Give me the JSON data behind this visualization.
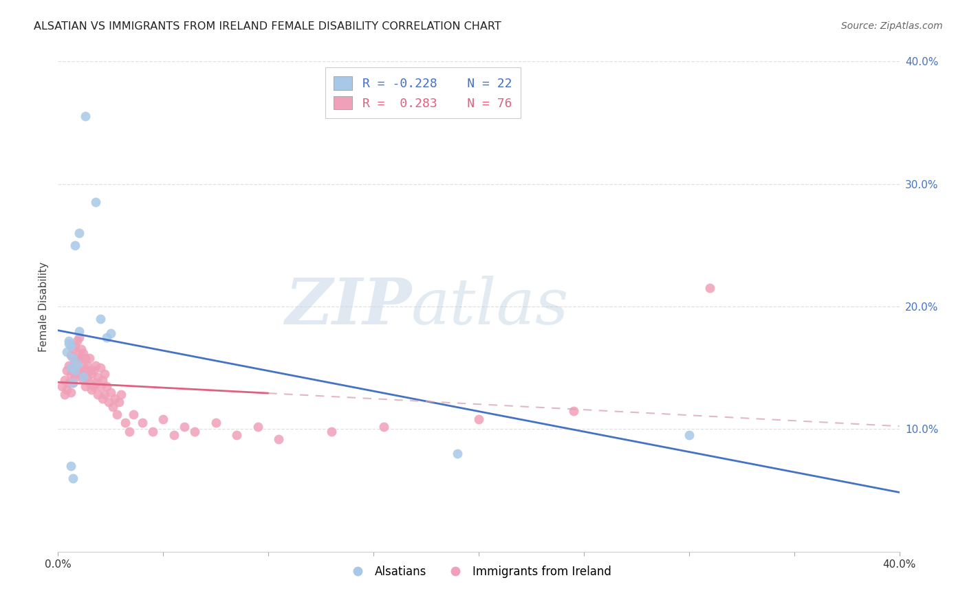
{
  "title": "ALSATIAN VS IMMIGRANTS FROM IRELAND FEMALE DISABILITY CORRELATION CHART",
  "source": "Source: ZipAtlas.com",
  "ylabel": "Female Disability",
  "xlim": [
    0.0,
    0.4
  ],
  "ylim": [
    0.0,
    0.4
  ],
  "background_color": "#ffffff",
  "grid_color": "#e0e0e0",
  "watermark_zip": "ZIP",
  "watermark_atlas": "atlas",
  "blue_color": "#a8c8e8",
  "pink_color": "#f0a0b8",
  "blue_line_color": "#4472c4",
  "pink_line_color": "#e06080",
  "pink_dashed_color": "#d8a0b0",
  "legend_R_blue": "-0.228",
  "legend_N_blue": "22",
  "legend_R_pink": "0.283",
  "legend_N_pink": "76",
  "legend_label_blue": "Alsatians",
  "legend_label_pink": "Immigrants from Ireland",
  "blue_x": [
    0.013,
    0.018,
    0.01,
    0.008,
    0.02,
    0.025,
    0.005,
    0.006,
    0.004,
    0.007,
    0.009,
    0.006,
    0.008,
    0.023,
    0.005,
    0.012,
    0.007,
    0.01,
    0.006,
    0.3,
    0.19,
    0.007
  ],
  "blue_y": [
    0.355,
    0.285,
    0.26,
    0.25,
    0.19,
    0.178,
    0.172,
    0.168,
    0.163,
    0.158,
    0.153,
    0.15,
    0.148,
    0.175,
    0.17,
    0.143,
    0.138,
    0.18,
    0.07,
    0.095,
    0.08,
    0.06
  ],
  "pink_x": [
    0.002,
    0.003,
    0.003,
    0.004,
    0.004,
    0.005,
    0.005,
    0.006,
    0.006,
    0.006,
    0.007,
    0.007,
    0.007,
    0.008,
    0.008,
    0.008,
    0.009,
    0.009,
    0.009,
    0.01,
    0.01,
    0.01,
    0.011,
    0.011,
    0.011,
    0.012,
    0.012,
    0.012,
    0.013,
    0.013,
    0.013,
    0.014,
    0.014,
    0.015,
    0.015,
    0.015,
    0.016,
    0.016,
    0.017,
    0.017,
    0.018,
    0.018,
    0.019,
    0.019,
    0.02,
    0.02,
    0.021,
    0.021,
    0.022,
    0.022,
    0.023,
    0.024,
    0.025,
    0.026,
    0.027,
    0.028,
    0.029,
    0.03,
    0.032,
    0.034,
    0.036,
    0.04,
    0.045,
    0.05,
    0.055,
    0.06,
    0.065,
    0.075,
    0.085,
    0.095,
    0.105,
    0.13,
    0.155,
    0.2,
    0.245,
    0.31
  ],
  "pink_y": [
    0.135,
    0.14,
    0.128,
    0.148,
    0.132,
    0.152,
    0.138,
    0.145,
    0.13,
    0.16,
    0.148,
    0.138,
    0.165,
    0.155,
    0.142,
    0.168,
    0.158,
    0.145,
    0.172,
    0.162,
    0.148,
    0.175,
    0.158,
    0.145,
    0.165,
    0.152,
    0.14,
    0.162,
    0.148,
    0.135,
    0.158,
    0.142,
    0.152,
    0.138,
    0.148,
    0.158,
    0.132,
    0.145,
    0.135,
    0.148,
    0.138,
    0.152,
    0.128,
    0.142,
    0.135,
    0.15,
    0.125,
    0.14,
    0.128,
    0.145,
    0.135,
    0.122,
    0.13,
    0.118,
    0.125,
    0.112,
    0.122,
    0.128,
    0.105,
    0.098,
    0.112,
    0.105,
    0.098,
    0.108,
    0.095,
    0.102,
    0.098,
    0.105,
    0.095,
    0.102,
    0.092,
    0.098,
    0.102,
    0.108,
    0.115,
    0.215
  ]
}
